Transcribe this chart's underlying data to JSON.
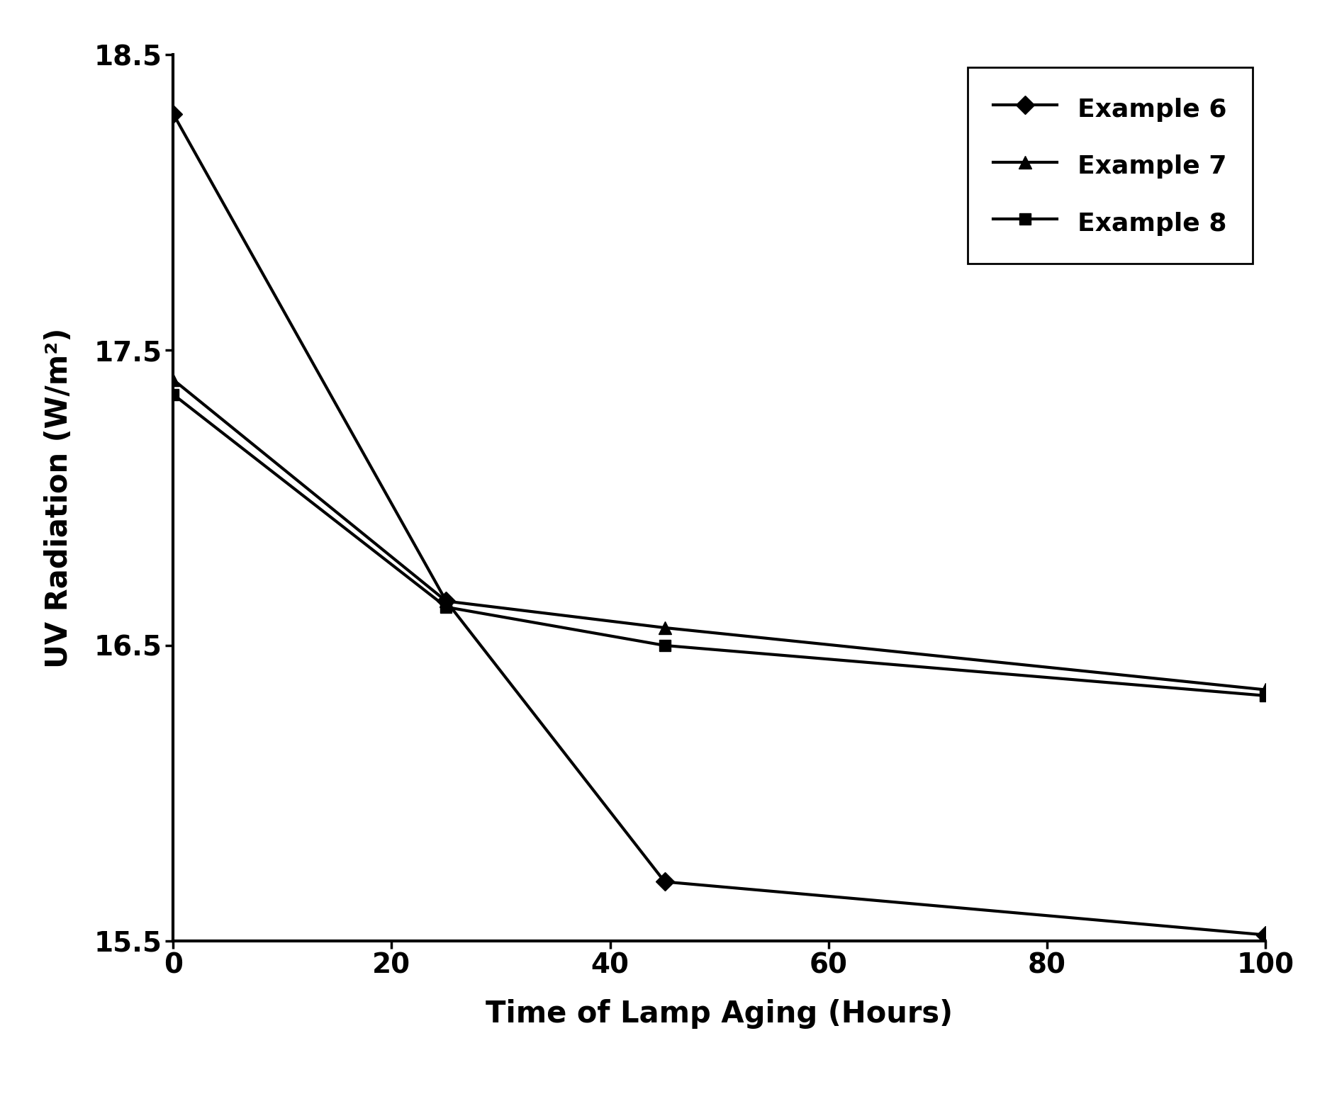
{
  "series": [
    {
      "label": "Example 6",
      "x": [
        0,
        25,
        45,
        100
      ],
      "y": [
        18.3,
        16.65,
        15.7,
        15.52
      ],
      "marker": "D",
      "color": "#000000",
      "markersize": 13,
      "linewidth": 3.0
    },
    {
      "label": "Example 7",
      "x": [
        0,
        25,
        45,
        100
      ],
      "y": [
        17.4,
        16.65,
        16.56,
        16.35
      ],
      "marker": "^",
      "color": "#000000",
      "markersize": 13,
      "linewidth": 3.0
    },
    {
      "label": "Example 8",
      "x": [
        0,
        25,
        45,
        100
      ],
      "y": [
        17.35,
        16.63,
        16.5,
        16.33
      ],
      "marker": "s",
      "color": "#000000",
      "markersize": 12,
      "linewidth": 3.0
    }
  ],
  "xlabel": "Time of Lamp Aging (Hours)",
  "ylabel": "UV Radiation (W/m²)",
  "xlim": [
    0,
    100
  ],
  "ylim": [
    15.5,
    18.5
  ],
  "xticks": [
    0,
    20,
    40,
    60,
    80,
    100
  ],
  "yticks": [
    15.5,
    16.5,
    17.5,
    18.5
  ],
  "xlabel_fontsize": 30,
  "ylabel_fontsize": 30,
  "tick_fontsize": 28,
  "legend_fontsize": 26,
  "background_color": "#ffffff",
  "legend_loc": "upper right",
  "spine_linewidth": 3.0
}
